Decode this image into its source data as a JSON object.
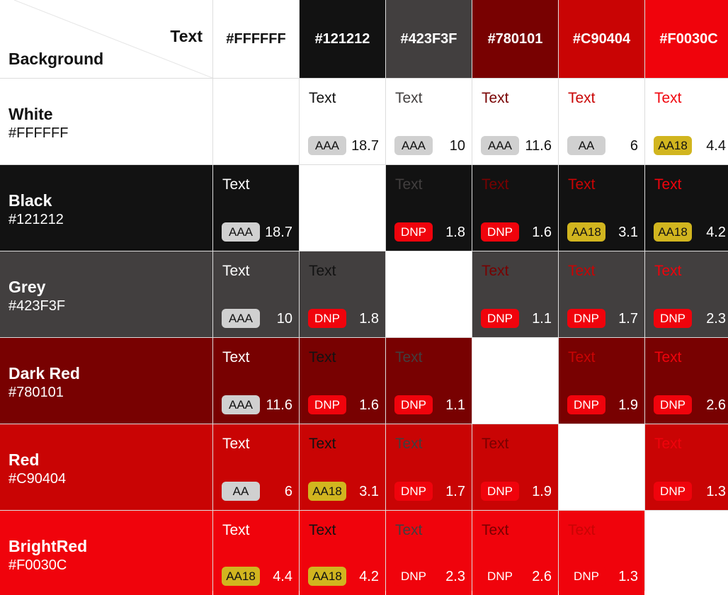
{
  "corner": {
    "text_label": "Text",
    "background_label": "Background"
  },
  "columns": [
    {
      "hex": "#FFFFFF",
      "color": "#FFFFFF"
    },
    {
      "hex": "#121212",
      "color": "#121212"
    },
    {
      "hex": "#423F3F",
      "color": "#423F3F"
    },
    {
      "hex": "#780101",
      "color": "#780101"
    },
    {
      "hex": "#C90404",
      "color": "#C90404"
    },
    {
      "hex": "#F0030C",
      "color": "#F0030C"
    }
  ],
  "rows": [
    {
      "name": "White",
      "hex": "#FFFFFF",
      "color": "#FFFFFF",
      "cells": [
        null,
        {
          "text": "Text",
          "badge": "AAA",
          "ratio": "18.7"
        },
        {
          "text": "Text",
          "badge": "AAA",
          "ratio": "10"
        },
        {
          "text": "Text",
          "badge": "AAA",
          "ratio": "11.6"
        },
        {
          "text": "Text",
          "badge": "AA",
          "ratio": "6"
        },
        {
          "text": "Text",
          "badge": "AA18",
          "ratio": "4.4"
        }
      ]
    },
    {
      "name": "Black",
      "hex": "#121212",
      "color": "#121212",
      "cells": [
        {
          "text": "Text",
          "badge": "AAA",
          "ratio": "18.7"
        },
        null,
        {
          "text": "Text",
          "badge": "DNP",
          "ratio": "1.8"
        },
        {
          "text": "Text",
          "badge": "DNP",
          "ratio": "1.6"
        },
        {
          "text": "Text",
          "badge": "AA18",
          "ratio": "3.1"
        },
        {
          "text": "Text",
          "badge": "AA18",
          "ratio": "4.2"
        }
      ]
    },
    {
      "name": "Grey",
      "hex": "#423F3F",
      "color": "#423F3F",
      "cells": [
        {
          "text": "Text",
          "badge": "AAA",
          "ratio": "10"
        },
        {
          "text": "Text",
          "badge": "DNP",
          "ratio": "1.8"
        },
        null,
        {
          "text": "Text",
          "badge": "DNP",
          "ratio": "1.1"
        },
        {
          "text": "Text",
          "badge": "DNP",
          "ratio": "1.7"
        },
        {
          "text": "Text",
          "badge": "DNP",
          "ratio": "2.3"
        }
      ]
    },
    {
      "name": "Dark Red",
      "hex": "#780101",
      "color": "#780101",
      "cells": [
        {
          "text": "Text",
          "badge": "AAA",
          "ratio": "11.6"
        },
        {
          "text": "Text",
          "badge": "DNP",
          "ratio": "1.6"
        },
        {
          "text": "Text",
          "badge": "DNP",
          "ratio": "1.1"
        },
        null,
        {
          "text": "Text",
          "badge": "DNP",
          "ratio": "1.9"
        },
        {
          "text": "Text",
          "badge": "DNP",
          "ratio": "2.6"
        }
      ]
    },
    {
      "name": "Red",
      "hex": "#C90404",
      "color": "#C90404",
      "cells": [
        {
          "text": "Text",
          "badge": "AA",
          "ratio": "6"
        },
        {
          "text": "Text",
          "badge": "AA18",
          "ratio": "3.1"
        },
        {
          "text": "Text",
          "badge": "DNP",
          "ratio": "1.7"
        },
        {
          "text": "Text",
          "badge": "DNP",
          "ratio": "1.9"
        },
        null,
        {
          "text": "Text",
          "badge": "DNP",
          "ratio": "1.3"
        }
      ]
    },
    {
      "name": "BrightRed",
      "hex": "#F0030C",
      "color": "#F0030C",
      "cells": [
        {
          "text": "Text",
          "badge": "AA18",
          "ratio": "4.4"
        },
        {
          "text": "Text",
          "badge": "AA18",
          "ratio": "4.2"
        },
        {
          "text": "Text",
          "badge": "DNP",
          "ratio": "2.3"
        },
        {
          "text": "Text",
          "badge": "DNP",
          "ratio": "2.6"
        },
        {
          "text": "Text",
          "badge": "DNP",
          "ratio": "1.3"
        },
        null
      ]
    }
  ]
}
